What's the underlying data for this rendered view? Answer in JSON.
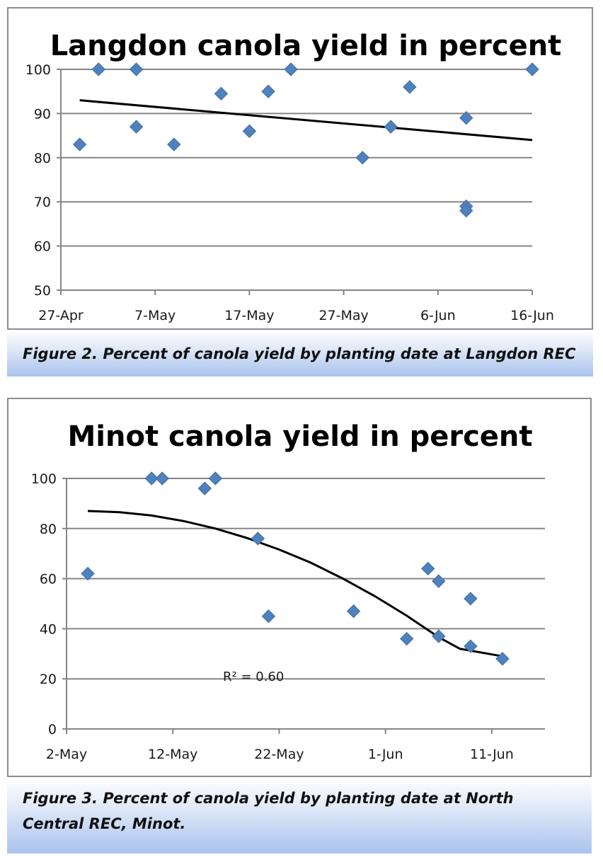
{
  "chart_data": [
    {
      "type": "scatter",
      "title": "Langdon canola yield in percent",
      "xlabel": "",
      "ylabel": "",
      "x_tick_labels": [
        "27-Apr",
        "7-May",
        "17-May",
        "27-May",
        "6-Jun",
        "16-Jun"
      ],
      "x_ticks_day": [
        0,
        10,
        20,
        30,
        40,
        50
      ],
      "xlim_day": [
        0,
        50
      ],
      "ylim": [
        50,
        100
      ],
      "y_ticks": [
        50,
        60,
        70,
        80,
        90,
        100
      ],
      "grid": true,
      "series": [
        {
          "name": "Yield",
          "marker": "diamond",
          "color": "#4f81bd",
          "points": [
            {
              "day": 2,
              "value": 83
            },
            {
              "day": 4,
              "value": 100
            },
            {
              "day": 8,
              "value": 100
            },
            {
              "day": 8,
              "value": 87
            },
            {
              "day": 12,
              "value": 83
            },
            {
              "day": 17,
              "value": 94.5
            },
            {
              "day": 20,
              "value": 86
            },
            {
              "day": 22,
              "value": 95
            },
            {
              "day": 24.4,
              "value": 100
            },
            {
              "day": 32,
              "value": 80
            },
            {
              "day": 35,
              "value": 87
            },
            {
              "day": 37,
              "value": 96
            },
            {
              "day": 43,
              "value": 89
            },
            {
              "day": 43,
              "value": 69
            },
            {
              "day": 43,
              "value": 68
            },
            {
              "day": 50,
              "value": 100
            }
          ]
        }
      ],
      "trendline": {
        "type": "linear",
        "color": "#000000",
        "start": {
          "day": 2,
          "value": 93
        },
        "end": {
          "day": 50,
          "value": 84
        }
      }
    },
    {
      "type": "scatter",
      "title": "Minot canola yield in percent",
      "xlabel": "",
      "ylabel": "",
      "x_tick_labels": [
        "2-May",
        "12-May",
        "22-May",
        "1-Jun",
        "11-Jun"
      ],
      "x_ticks_day": [
        0,
        10,
        20,
        30,
        40
      ],
      "xlim_day": [
        0,
        45
      ],
      "ylim": [
        0,
        100
      ],
      "y_ticks": [
        0,
        20,
        40,
        60,
        80,
        100
      ],
      "grid": true,
      "series": [
        {
          "name": "Yield",
          "marker": "diamond",
          "color": "#4f81bd",
          "points": [
            {
              "day": 2,
              "value": 62
            },
            {
              "day": 8,
              "value": 100
            },
            {
              "day": 9,
              "value": 100
            },
            {
              "day": 13,
              "value": 96
            },
            {
              "day": 14,
              "value": 100
            },
            {
              "day": 18,
              "value": 76
            },
            {
              "day": 19,
              "value": 45
            },
            {
              "day": 27,
              "value": 47
            },
            {
              "day": 32,
              "value": 36
            },
            {
              "day": 34,
              "value": 64
            },
            {
              "day": 35,
              "value": 59
            },
            {
              "day": 35,
              "value": 37
            },
            {
              "day": 38,
              "value": 52
            },
            {
              "day": 38,
              "value": 33
            },
            {
              "day": 41,
              "value": 28
            }
          ]
        }
      ],
      "trendline": {
        "type": "polynomial",
        "color": "#000000",
        "points": [
          {
            "day": 2,
            "value": 87
          },
          {
            "day": 5,
            "value": 86.5
          },
          {
            "day": 8,
            "value": 85.2
          },
          {
            "day": 11,
            "value": 83
          },
          {
            "day": 14,
            "value": 80
          },
          {
            "day": 17,
            "value": 76.2
          },
          {
            "day": 20,
            "value": 71.6
          },
          {
            "day": 23,
            "value": 66.3
          },
          {
            "day": 26,
            "value": 60
          },
          {
            "day": 29,
            "value": 53
          },
          {
            "day": 32,
            "value": 45.2
          },
          {
            "day": 35,
            "value": 36.6
          },
          {
            "day": 37,
            "value": 32
          },
          {
            "day": 41,
            "value": 29
          }
        ]
      },
      "annotation": "R² = 0.60"
    }
  ],
  "captions": {
    "figure2": "Figure 2. Percent of canola yield by planting date at Langdon REC",
    "figure3_line1": "Figure 3. Percent of canola yield by planting date at North",
    "figure3_line2": "Central REC, Minot."
  }
}
